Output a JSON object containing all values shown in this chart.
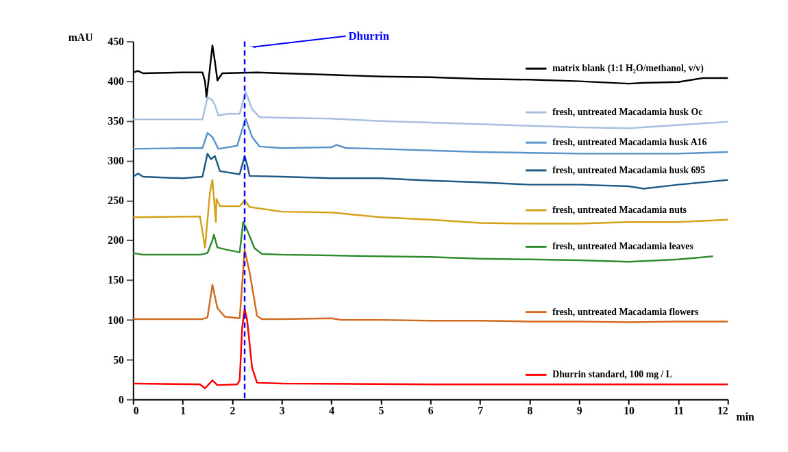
{
  "chart_data": {
    "type": "line",
    "xlabel": "min",
    "ylabel": "mAU",
    "xlim": [
      0,
      12
    ],
    "ylim": [
      0,
      450
    ],
    "xticks": [
      0,
      1,
      2,
      3,
      4,
      5,
      6,
      7,
      8,
      9,
      10,
      11,
      12
    ],
    "yticks": [
      0,
      50,
      100,
      150,
      200,
      250,
      300,
      350,
      400,
      450
    ],
    "grid": false,
    "legend": "right",
    "marker": "none",
    "line_style": "solid",
    "ref_lines": [
      {
        "axis": "x",
        "value": 2.25,
        "label": "Dhurrin",
        "color": "#0000ff",
        "line_style": "dashed"
      }
    ],
    "series": [
      {
        "name": "matrix blank (1:1 H₂O/methanol, v/v)",
        "color": "#000000",
        "x": [
          0,
          0.1,
          0.2,
          1,
          1.4,
          1.45,
          1.48,
          1.52,
          1.6,
          1.65,
          1.7,
          1.8,
          2.5,
          3,
          4,
          5,
          6,
          7,
          8,
          9,
          10,
          10.3,
          11,
          11.5,
          12
        ],
        "values": [
          411,
          413,
          410,
          411,
          411,
          400,
          380,
          400,
          445,
          425,
          401,
          410,
          411,
          410,
          408,
          406,
          405,
          403,
          402,
          400,
          397,
          398,
          399,
          404,
          404
        ]
      },
      {
        "name": "fresh, untreated Macadamia husk Oc",
        "color": "#a7bfdf",
        "x": [
          0,
          1,
          1.4,
          1.5,
          1.6,
          1.65,
          1.72,
          1.9,
          2.15,
          2.27,
          2.4,
          2.55,
          3,
          4,
          5,
          6,
          7,
          8,
          9,
          10,
          11,
          12
        ],
        "values": [
          352,
          352,
          352,
          380,
          376,
          370,
          357,
          359,
          359,
          387,
          365,
          355,
          354,
          353,
          350,
          348,
          346,
          344,
          342,
          341,
          345,
          349
        ]
      },
      {
        "name": "fresh, untreated Macadamia husk A16",
        "color": "#5a93c9",
        "x": [
          0,
          1,
          1.4,
          1.5,
          1.6,
          1.72,
          2.1,
          2.27,
          2.4,
          2.55,
          3,
          4,
          4.1,
          4.3,
          5,
          6,
          7,
          8,
          9,
          10,
          11,
          12
        ],
        "values": [
          315,
          316,
          316,
          335,
          330,
          315,
          319,
          353,
          330,
          318,
          316,
          317,
          320,
          316,
          315,
          313,
          311,
          310,
          309,
          309,
          309,
          311
        ]
      },
      {
        "name": "fresh, untreated Macadamia husk 695",
        "color": "#1f5a85",
        "x": [
          0,
          0.1,
          0.2,
          1,
          1.4,
          1.5,
          1.57,
          1.65,
          1.75,
          2.15,
          2.18,
          2.25,
          2.3,
          2.35,
          3,
          4,
          5,
          6,
          7,
          8,
          9,
          10,
          10.3,
          11,
          12
        ],
        "values": [
          280,
          284,
          280,
          278,
          280,
          309,
          302,
          306,
          287,
          283,
          290,
          306,
          295,
          281,
          280,
          278,
          278,
          275,
          273,
          270,
          270,
          268,
          265,
          270,
          276
        ]
      },
      {
        "name": "fresh, untreated Macadamia nuts",
        "color": "#d4a017",
        "x": [
          0,
          1.35,
          1.45,
          1.55,
          1.6,
          1.67,
          1.68,
          1.75,
          2.15,
          2.25,
          2.35,
          3,
          4,
          5,
          6,
          7,
          8,
          9,
          10,
          11,
          12
        ],
        "values": [
          229,
          230,
          191,
          260,
          276,
          223,
          252,
          243,
          243,
          250,
          242,
          236,
          235,
          229,
          226,
          222,
          221,
          221,
          223,
          223,
          226
        ]
      },
      {
        "name": "fresh, untreated Macadamia leaves",
        "color": "#2e8b2e",
        "x": [
          0,
          0.2,
          1.35,
          1.5,
          1.6,
          1.63,
          1.7,
          1.9,
          2.15,
          2.22,
          2.3,
          2.45,
          2.6,
          3,
          4,
          5,
          6,
          7,
          8,
          9,
          10,
          11,
          11.7
        ],
        "values": [
          184,
          182,
          182,
          184,
          200,
          207,
          191,
          188,
          185,
          223,
          213,
          190,
          183,
          182,
          181,
          180,
          179,
          177,
          176,
          175,
          173,
          176,
          180
        ]
      },
      {
        "name": "fresh, untreated Macadamia flowers",
        "color": "#d2691e",
        "x": [
          0,
          1.4,
          1.5,
          1.6,
          1.7,
          1.85,
          2.15,
          2.25,
          2.35,
          2.5,
          2.6,
          3,
          4,
          4.2,
          5,
          6,
          7,
          8,
          9,
          10,
          11,
          12
        ],
        "values": [
          101,
          101,
          103,
          144,
          115,
          104,
          102,
          188,
          160,
          105,
          101,
          101,
          102,
          100,
          100,
          99,
          99,
          98,
          98,
          97,
          98,
          98
        ]
      },
      {
        "name": "Dhurrin standard, 100 mg / L",
        "color": "#ff0000",
        "x": [
          0,
          1.35,
          1.45,
          1.6,
          1.7,
          2.1,
          2.15,
          2.2,
          2.25,
          2.3,
          2.4,
          2.5,
          3,
          6,
          12
        ],
        "values": [
          20,
          19,
          14,
          24,
          18,
          19,
          24,
          90,
          114,
          100,
          40,
          21,
          20,
          19,
          19
        ]
      }
    ]
  }
}
